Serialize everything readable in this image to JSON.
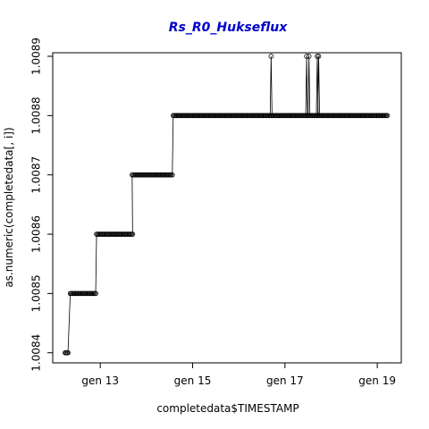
{
  "chart_data": {
    "type": "scatter",
    "title": "Rs_R0_Hukseflux",
    "title_color": "#0000cc",
    "xlabel": "completedata$TIMESTAMP",
    "ylabel": "as.numeric(completedata[, i])",
    "x_unit": "day of month",
    "xlim": [
      11.97,
      19.52
    ],
    "ylim": [
      1.008383,
      1.008906
    ],
    "x_ticks": [
      {
        "value": 13,
        "label": "gen 13"
      },
      {
        "value": 15,
        "label": "gen 15"
      },
      {
        "value": 17,
        "label": "gen 17"
      },
      {
        "value": 19,
        "label": "gen 19"
      }
    ],
    "y_ticks": [
      {
        "value": 1.0084,
        "label": "1.0084"
      },
      {
        "value": 1.0085,
        "label": "1.0085"
      },
      {
        "value": 1.0086,
        "label": "1.0086"
      },
      {
        "value": 1.0087,
        "label": "1.0087"
      },
      {
        "value": 1.0088,
        "label": "1.0088"
      },
      {
        "value": 1.0089,
        "label": "1.0089"
      }
    ],
    "grid": false,
    "marker": "open-circle",
    "connected": true,
    "segments": [
      {
        "x_start": 12.24,
        "x_end": 12.3,
        "y": 1.0084
      },
      {
        "x_start": 12.35,
        "x_end": 12.9,
        "y": 1.0085
      },
      {
        "x_start": 12.92,
        "x_end": 13.7,
        "y": 1.0086
      },
      {
        "x_start": 13.69,
        "x_end": 14.56,
        "y": 1.0087
      },
      {
        "x_start": 14.58,
        "x_end": 19.22,
        "y": 1.0088
      }
    ],
    "spikes": [
      {
        "x": 16.7,
        "y": 1.0089
      },
      {
        "x": 17.47,
        "y": 1.0089
      },
      {
        "x": 17.52,
        "y": 1.0089
      },
      {
        "x": 17.7,
        "y": 1.0089
      },
      {
        "x": 17.73,
        "y": 1.0089
      }
    ]
  }
}
